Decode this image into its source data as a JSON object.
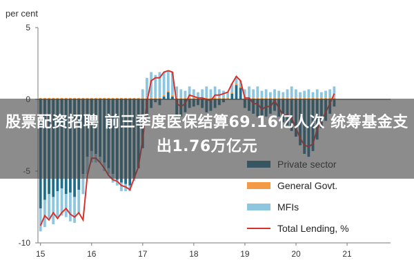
{
  "headline": "股票配资招聘 前三季度医保结算69.16亿人次 统筹基金支出1.76万亿元",
  "chart_data": {
    "type": "bar",
    "ylabel": "per cent",
    "ylim": [
      -10,
      5
    ],
    "yticks": [
      "5",
      "0",
      "-5",
      "-10"
    ],
    "xticks": [
      {
        "label": "15",
        "x": 2015.0
      },
      {
        "label": "16",
        "x": 2016.0
      },
      {
        "label": "17",
        "x": 2017.0
      },
      {
        "label": "18",
        "x": 2018.0
      },
      {
        "label": "19",
        "x": 2019.0
      },
      {
        "label": "20",
        "x": 2020.0
      },
      {
        "label": "21",
        "x": 2021.0
      }
    ],
    "x_start": 2015.0,
    "x_step": 0.0833,
    "grid": false,
    "legend_position": "bottom-right",
    "colors": {
      "private": "#1f6e8c",
      "general": "#f29a45",
      "mfis": "#8ec6df",
      "total": "#d8312c"
    },
    "series": [
      {
        "name": "Private sector",
        "kind": "bar",
        "values": [
          -7.6,
          -7.0,
          -6.6,
          -6.8,
          -6.4,
          -6.2,
          -6.6,
          -6.5,
          -6.8,
          -6.3,
          -5.2,
          -4.0,
          -3.6,
          -3.8,
          -4.0,
          -4.4,
          -4.8,
          -5.2,
          -5.6,
          -5.8,
          -5.9,
          -6.0,
          -5.5,
          -4.8,
          -3.4,
          -1.6,
          -0.6,
          -0.2,
          -0.4,
          0.2,
          0.5,
          0.2,
          -1.2,
          -1.2,
          -0.9,
          -0.6,
          -0.5,
          -0.4,
          -0.6,
          -0.9,
          -0.8,
          -0.6,
          -0.4,
          -0.2,
          0.0,
          0.4,
          1.0,
          0.8,
          -0.6,
          -0.8,
          -1.0,
          -1.2,
          -1.3,
          -1.2,
          -1.0,
          -0.8,
          -1.2,
          -1.6,
          -1.8,
          -2.2,
          -2.6,
          -3.2,
          -3.8,
          -4.0,
          -3.6,
          -2.8,
          -2.0,
          -1.5,
          -1.0,
          -0.5
        ]
      },
      {
        "name": "General Govt.",
        "kind": "bar",
        "values": [
          0.1,
          0.1,
          0.1,
          0.1,
          0.1,
          0.1,
          0.1,
          0.1,
          0.1,
          0.1,
          0.1,
          0.1,
          0.1,
          0.1,
          0.1,
          0.1,
          0.1,
          0.1,
          0.1,
          0.1,
          0.1,
          0.1,
          0.1,
          0.1,
          0.1,
          0.1,
          0.1,
          0.1,
          0.1,
          0.1,
          0.1,
          0.1,
          0.1,
          0.1,
          0.1,
          0.1,
          0.1,
          0.1,
          0.1,
          0.1,
          0.1,
          0.1,
          0.1,
          0.1,
          0.1,
          0.1,
          0.1,
          0.1,
          0.1,
          0.1,
          0.1,
          0.1,
          0.1,
          0.1,
          0.1,
          0.1,
          0.1,
          0.1,
          0.1,
          0.1,
          0.1,
          0.1,
          0.1,
          0.1,
          0.1,
          0.1,
          0.1,
          0.1,
          0.1,
          0.1
        ]
      },
      {
        "name": "MFIs",
        "kind": "bar",
        "values": [
          -1.6,
          -1.9,
          -1.7,
          -1.9,
          -1.8,
          -1.9,
          -1.6,
          -2.0,
          -1.8,
          -1.6,
          -1.4,
          -1.2,
          -0.8,
          -0.6,
          -0.4,
          -0.6,
          -0.4,
          -0.6,
          -0.4,
          -0.6,
          -0.5,
          -0.4,
          -0.2,
          0.0,
          0.6,
          1.4,
          1.8,
          1.6,
          1.8,
          1.6,
          1.4,
          1.6,
          0.8,
          0.6,
          0.5,
          0.8,
          0.6,
          0.4,
          0.6,
          0.8,
          0.6,
          0.8,
          0.6,
          0.5,
          0.4,
          0.6,
          0.5,
          0.4,
          0.6,
          0.8,
          0.6,
          0.8,
          0.5,
          0.6,
          0.4,
          0.6,
          0.5,
          0.4,
          0.6,
          0.8,
          0.6,
          0.4,
          0.5,
          0.6,
          0.4,
          0.6,
          0.4,
          0.5,
          0.6,
          0.8
        ]
      },
      {
        "name": "Total Lending, %",
        "kind": "line",
        "values": [
          -8.8,
          -8.1,
          -8.4,
          -7.9,
          -8.3,
          -7.9,
          -7.6,
          -8.0,
          -8.2,
          -7.9,
          -8.4,
          -5.3,
          -4.1,
          -4.1,
          -4.4,
          -4.8,
          -5.3,
          -5.6,
          -5.7,
          -6.0,
          -6.1,
          -6.3,
          -5.5,
          -4.7,
          -2.8,
          -0.2,
          1.3,
          1.5,
          1.5,
          1.9,
          2.0,
          1.9,
          -0.3,
          -0.5,
          -0.3,
          0.3,
          0.2,
          0.1,
          0.1,
          -0.0,
          -0.1,
          0.3,
          0.3,
          0.4,
          0.5,
          1.1,
          1.6,
          1.3,
          0.1,
          0.1,
          -0.3,
          -0.3,
          -0.7,
          -0.5,
          -0.5,
          -0.1,
          -0.6,
          -1.1,
          -1.1,
          -1.3,
          -2.0,
          -2.7,
          -3.2,
          -3.3,
          -3.1,
          -2.1,
          -1.5,
          -0.9,
          -0.3,
          0.4
        ]
      }
    ]
  }
}
